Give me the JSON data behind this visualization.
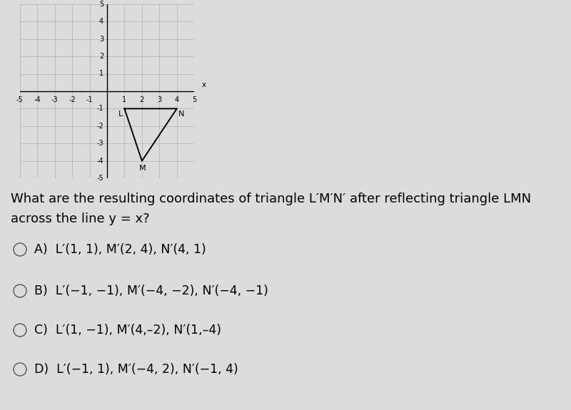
{
  "bg_color": "#dcdcdc",
  "axis_range": [
    -5,
    5
  ],
  "triangle_LMN": {
    "L": [
      1,
      -1
    ],
    "M": [
      2,
      -4
    ],
    "N": [
      4,
      -1
    ]
  },
  "question_line1": "What are the resulting coordinates of triangle L′M′N′ after reflecting triangle LMN",
  "question_line2": "across the line y = x?",
  "choices": [
    "A)  L′(1, 1), M′(2, 4), N′(4, 1)",
    "B)  L′(−1, −1), M′(−4, −2), N′(−4, −1)",
    "C)  L′(1, −1), M′(4,–2), N′(1,–4)",
    "D)  L′(−1, 1), M′(−4, 2), N′(−1, 4)"
  ],
  "grid_color": "#b0b0b0",
  "axis_color": "#000000",
  "triangle_color": "#000000",
  "label_fontsize": 8,
  "tick_fontsize": 7,
  "question_fontsize": 13,
  "choice_fontsize": 12.5
}
